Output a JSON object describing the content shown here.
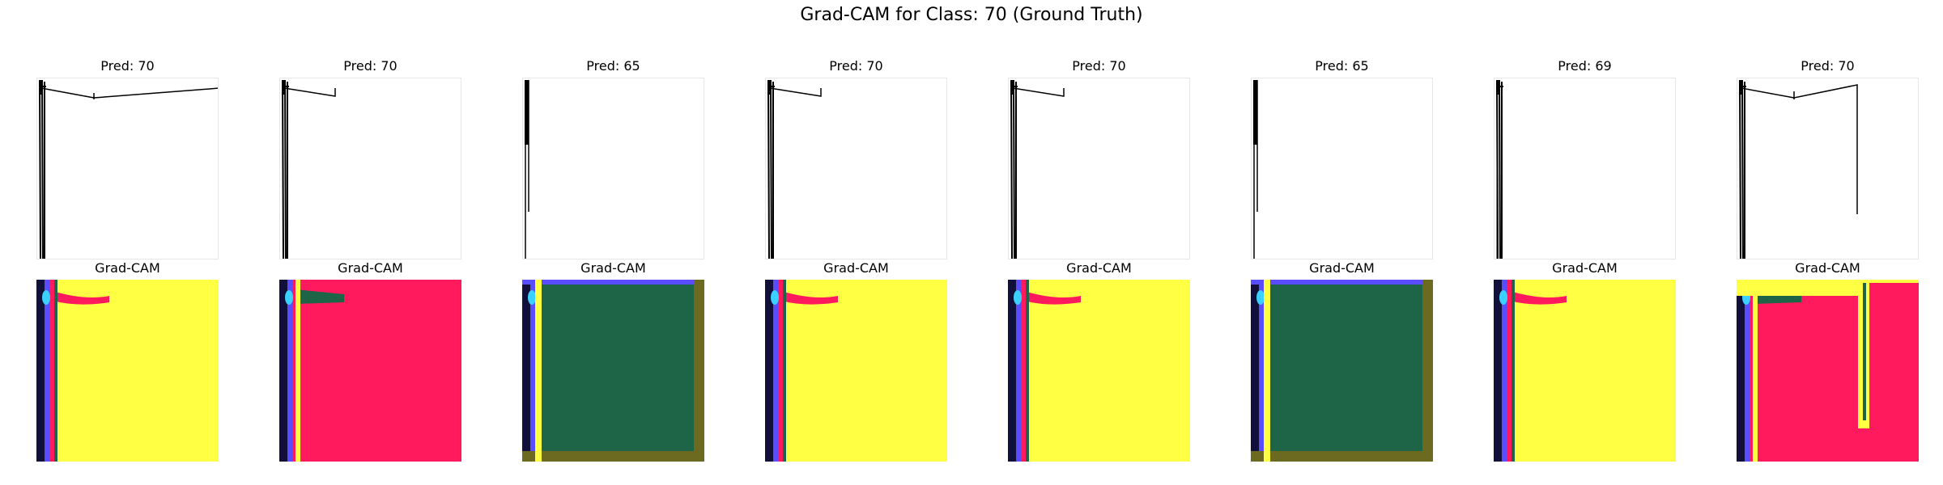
{
  "figure": {
    "title": "Grad-CAM for Class: 70 (Ground Truth)"
  },
  "samples": [
    {
      "pred_label": "Pred: 70",
      "cam_label": "Grad-CAM",
      "cam_fill": "#ffff44",
      "stroke": "long"
    },
    {
      "pred_label": "Pred: 70",
      "cam_label": "Grad-CAM",
      "cam_fill": "#ff1a5e",
      "stroke": "short"
    },
    {
      "pred_label": "Pred: 65",
      "cam_label": "Grad-CAM",
      "cam_fill": "#1e6447",
      "stroke": "vertical"
    },
    {
      "pred_label": "Pred: 70",
      "cam_label": "Grad-CAM",
      "cam_fill": "#ffff44",
      "stroke": "short"
    },
    {
      "pred_label": "Pred: 70",
      "cam_label": "Grad-CAM",
      "cam_fill": "#ffff44",
      "stroke": "short"
    },
    {
      "pred_label": "Pred: 65",
      "cam_label": "Grad-CAM",
      "cam_fill": "#1e6447",
      "stroke": "vertical"
    },
    {
      "pred_label": "Pred: 69",
      "cam_label": "Grad-CAM",
      "cam_fill": "#ffff44",
      "stroke": "none"
    },
    {
      "pred_label": "Pred: 70",
      "cam_label": "Grad-CAM",
      "cam_fill": "#ff1a5e",
      "stroke": "hook"
    }
  ],
  "colors": {
    "edge_dark": "#10103a",
    "edge_blue": "#5a4cff",
    "edge_cyan": "#3ad0ff",
    "edge_red": "#ff1a5e",
    "edge_yellow": "#ffff44",
    "edge_green": "#1e6447",
    "edge_olive": "#6b6a20"
  }
}
